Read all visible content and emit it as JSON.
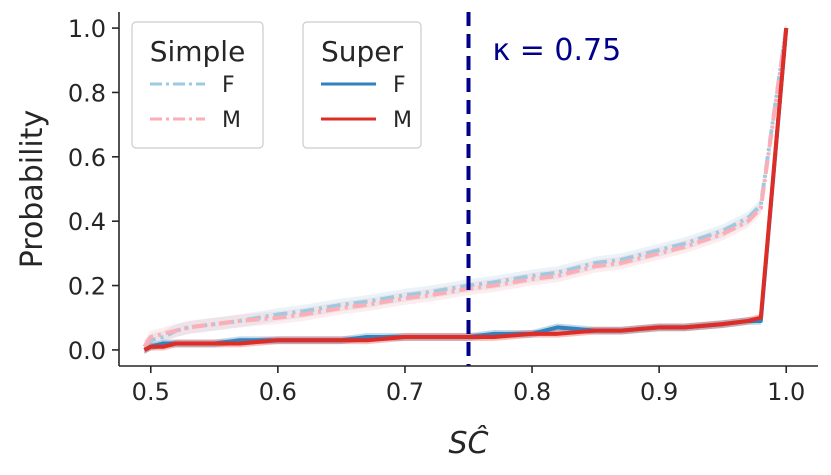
{
  "chart_data": {
    "type": "line",
    "title": "",
    "xlabel": "SĈ",
    "ylabel": "Probability",
    "xlim": [
      0.475,
      1.025
    ],
    "ylim": [
      -0.05,
      1.05
    ],
    "xticks": [
      "0.5",
      "0.6",
      "0.7",
      "0.8",
      "0.9",
      "1.0"
    ],
    "yticks": [
      "0.0",
      "0.2",
      "0.4",
      "0.6",
      "0.8",
      "1.0"
    ],
    "x": [
      0.495,
      0.5,
      0.51,
      0.52,
      0.53,
      0.55,
      0.57,
      0.6,
      0.62,
      0.65,
      0.67,
      0.7,
      0.72,
      0.75,
      0.77,
      0.8,
      0.82,
      0.85,
      0.87,
      0.9,
      0.92,
      0.95,
      0.97,
      0.98,
      1.0
    ],
    "series": [
      {
        "name": "Simple F",
        "group": "Simple",
        "label": "F",
        "style": "dashdot",
        "color": "#9ecae1",
        "values": [
          0.01,
          0.03,
          0.04,
          0.06,
          0.07,
          0.08,
          0.09,
          0.11,
          0.12,
          0.14,
          0.15,
          0.17,
          0.18,
          0.2,
          0.21,
          0.23,
          0.24,
          0.27,
          0.28,
          0.31,
          0.33,
          0.37,
          0.41,
          0.45,
          1.0
        ]
      },
      {
        "name": "Simple M",
        "group": "Simple",
        "label": "M",
        "style": "dashdot",
        "color": "#fcaeb6",
        "values": [
          0.01,
          0.04,
          0.05,
          0.06,
          0.07,
          0.08,
          0.09,
          0.1,
          0.11,
          0.13,
          0.14,
          0.16,
          0.17,
          0.19,
          0.2,
          0.22,
          0.23,
          0.26,
          0.27,
          0.3,
          0.32,
          0.36,
          0.4,
          0.44,
          1.0
        ]
      },
      {
        "name": "Super F",
        "group": "Super",
        "label": "F",
        "style": "solid",
        "color": "#3182bd",
        "values": [
          0.0,
          0.01,
          0.02,
          0.02,
          0.02,
          0.02,
          0.03,
          0.03,
          0.03,
          0.03,
          0.04,
          0.04,
          0.04,
          0.04,
          0.05,
          0.05,
          0.07,
          0.06,
          0.06,
          0.07,
          0.07,
          0.08,
          0.09,
          0.09,
          1.0
        ]
      },
      {
        "name": "Super M",
        "group": "Super",
        "label": "M",
        "style": "solid",
        "color": "#de2d26",
        "values": [
          0.0,
          0.01,
          0.01,
          0.02,
          0.02,
          0.02,
          0.02,
          0.03,
          0.03,
          0.03,
          0.03,
          0.04,
          0.04,
          0.04,
          0.04,
          0.05,
          0.05,
          0.06,
          0.06,
          0.07,
          0.07,
          0.08,
          0.09,
          0.1,
          1.0
        ]
      }
    ],
    "legends": [
      {
        "title": "Simple",
        "entries": [
          "F",
          "M"
        ]
      },
      {
        "title": "Super",
        "entries": [
          "F",
          "M"
        ]
      }
    ],
    "threshold": {
      "x": 0.75,
      "label": "κ = 0.75",
      "color": "#00008b"
    }
  }
}
